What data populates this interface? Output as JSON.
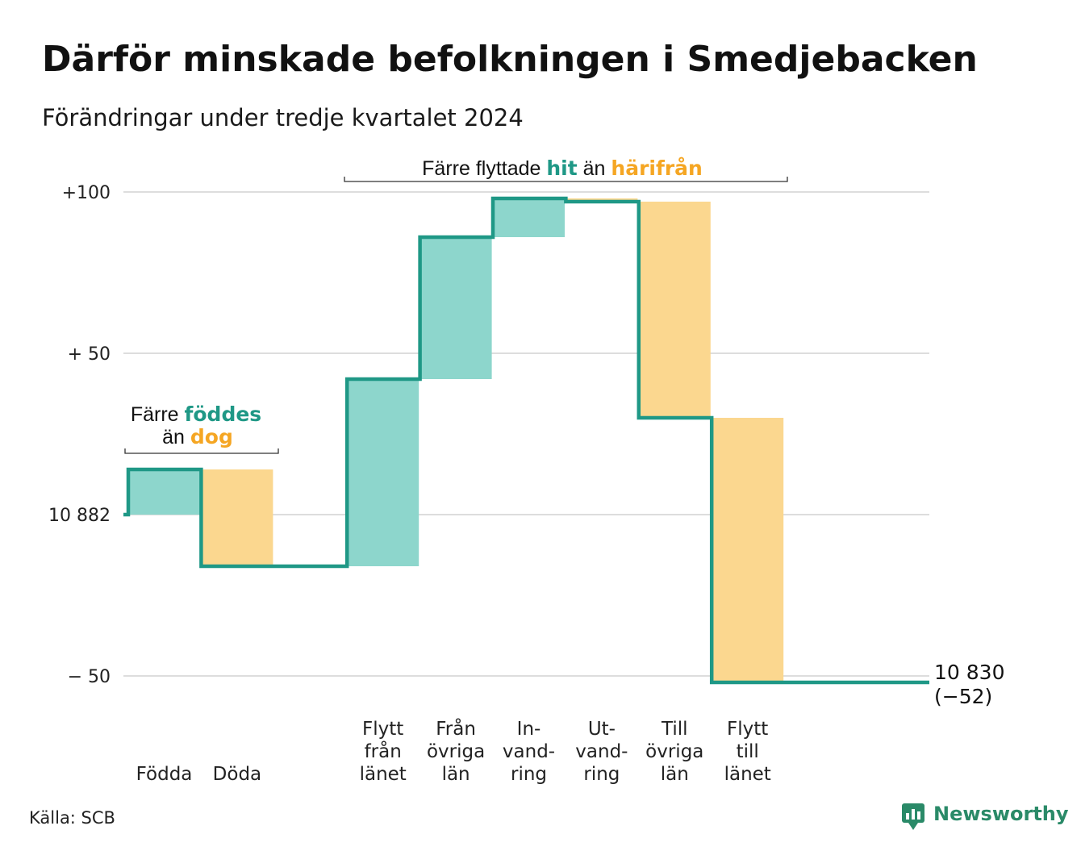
{
  "chart_data": {
    "type": "waterfall",
    "title": "Därför minskade befolkningen i Smedjebacken",
    "subtitle": "Förändringar under tredje kvartalet 2024",
    "y_ticks": [
      {
        "value": 100,
        "label": "+100"
      },
      {
        "value": 50,
        "label": "+ 50"
      },
      {
        "value": 0,
        "label": "10 882"
      },
      {
        "value": -50,
        "label": "−  50"
      }
    ],
    "ylim": [
      -52,
      100
    ],
    "base_population": 10882,
    "steps": [
      {
        "label_lines": [
          "Födda"
        ],
        "value": 14,
        "kind": "positive"
      },
      {
        "label_lines": [
          "Döda"
        ],
        "value": -30,
        "kind": "negative"
      },
      {
        "label_lines": [],
        "value": 0,
        "kind": "gap"
      },
      {
        "label_lines": [
          "Flytt",
          "från",
          "länet"
        ],
        "value": 58,
        "kind": "positive"
      },
      {
        "label_lines": [
          "Från",
          "övriga",
          "län"
        ],
        "value": 44,
        "kind": "positive"
      },
      {
        "label_lines": [
          "In-",
          "vand-",
          "ring"
        ],
        "value": 12,
        "kind": "positive"
      },
      {
        "label_lines": [
          "Ut-",
          "vand-",
          "ring"
        ],
        "value": -1,
        "kind": "negative"
      },
      {
        "label_lines": [
          "Till",
          "övriga",
          "län"
        ],
        "value": -67,
        "kind": "negative"
      },
      {
        "label_lines": [
          "Flytt",
          "till",
          "länet"
        ],
        "value": -82,
        "kind": "negative"
      },
      {
        "label_lines": [],
        "value": 0,
        "kind": "gap"
      }
    ],
    "end_label": {
      "line1": "10 830",
      "line2": "(−52)",
      "value": -52
    },
    "annotations": {
      "births": {
        "part1": "Färre ",
        "part2": "föddes",
        "part3": "än ",
        "part4": "dog"
      },
      "migration": {
        "part1": "Färre flyttade ",
        "part2": "hit",
        "part3": " än ",
        "part4": "härifrån"
      }
    },
    "colors": {
      "positive_fill": "#8dd6cc",
      "negative_fill": "#fbd78f",
      "line": "#1f9886",
      "teal_text": "#1f9886",
      "orange_text": "#f5a623",
      "grid": "#dddddd"
    }
  },
  "source": "Källa: SCB",
  "brand": {
    "name": "Newsworthy",
    "color": "#2a8a68",
    "icon": "newsworthy-logo-icon"
  }
}
